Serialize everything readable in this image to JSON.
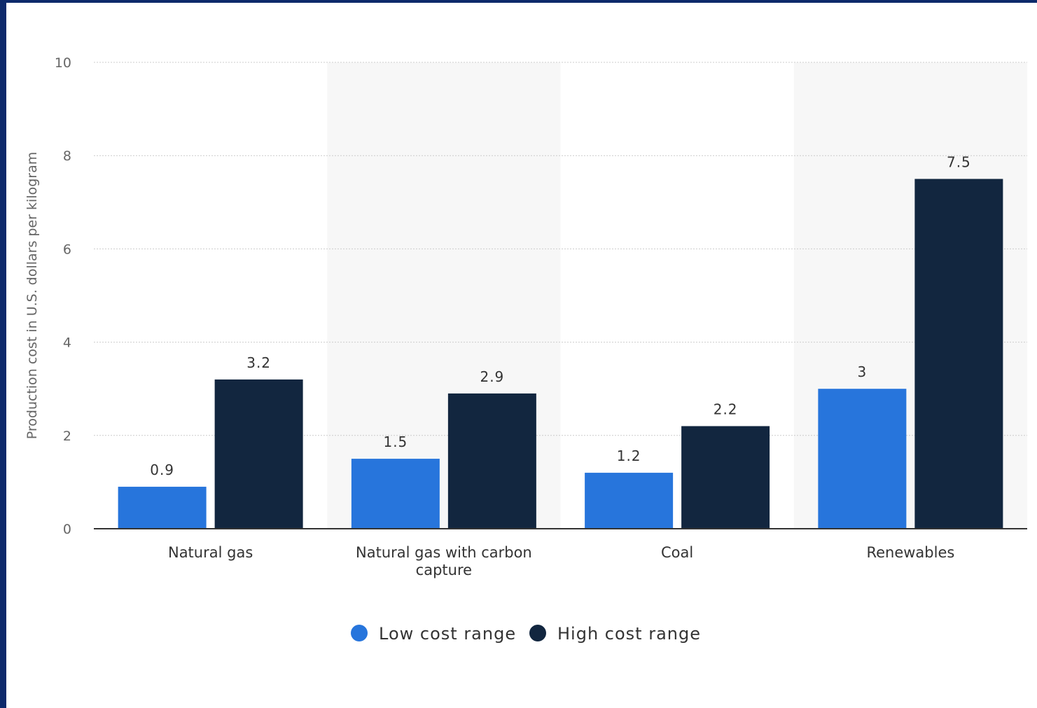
{
  "colors": {
    "frame": "#0d2a6b",
    "low": "#2775dc",
    "high": "#12263f",
    "band": "#f7f7f7",
    "grid": "#cccccc",
    "axis": "#333333"
  },
  "chart_data": {
    "type": "bar",
    "title": "",
    "xlabel": "",
    "ylabel": "Production cost in U.S. dollars per kilogram",
    "ylim": [
      0,
      10
    ],
    "yticks": [
      0,
      2,
      4,
      6,
      8,
      10
    ],
    "grid": true,
    "legend_position": "bottom",
    "categories": [
      "Natural gas",
      "Natural gas with carbon capture",
      "Coal",
      "Renewables"
    ],
    "category_lines": [
      [
        "Natural gas"
      ],
      [
        "Natural gas with carbon",
        "capture"
      ],
      [
        "Coal"
      ],
      [
        "Renewables"
      ]
    ],
    "series": [
      {
        "name": "Low cost range",
        "color": "#2775dc",
        "values": [
          0.9,
          1.5,
          1.2,
          3
        ]
      },
      {
        "name": "High cost range",
        "color": "#12263f",
        "values": [
          3.2,
          2.9,
          2.2,
          7.5
        ]
      }
    ]
  }
}
